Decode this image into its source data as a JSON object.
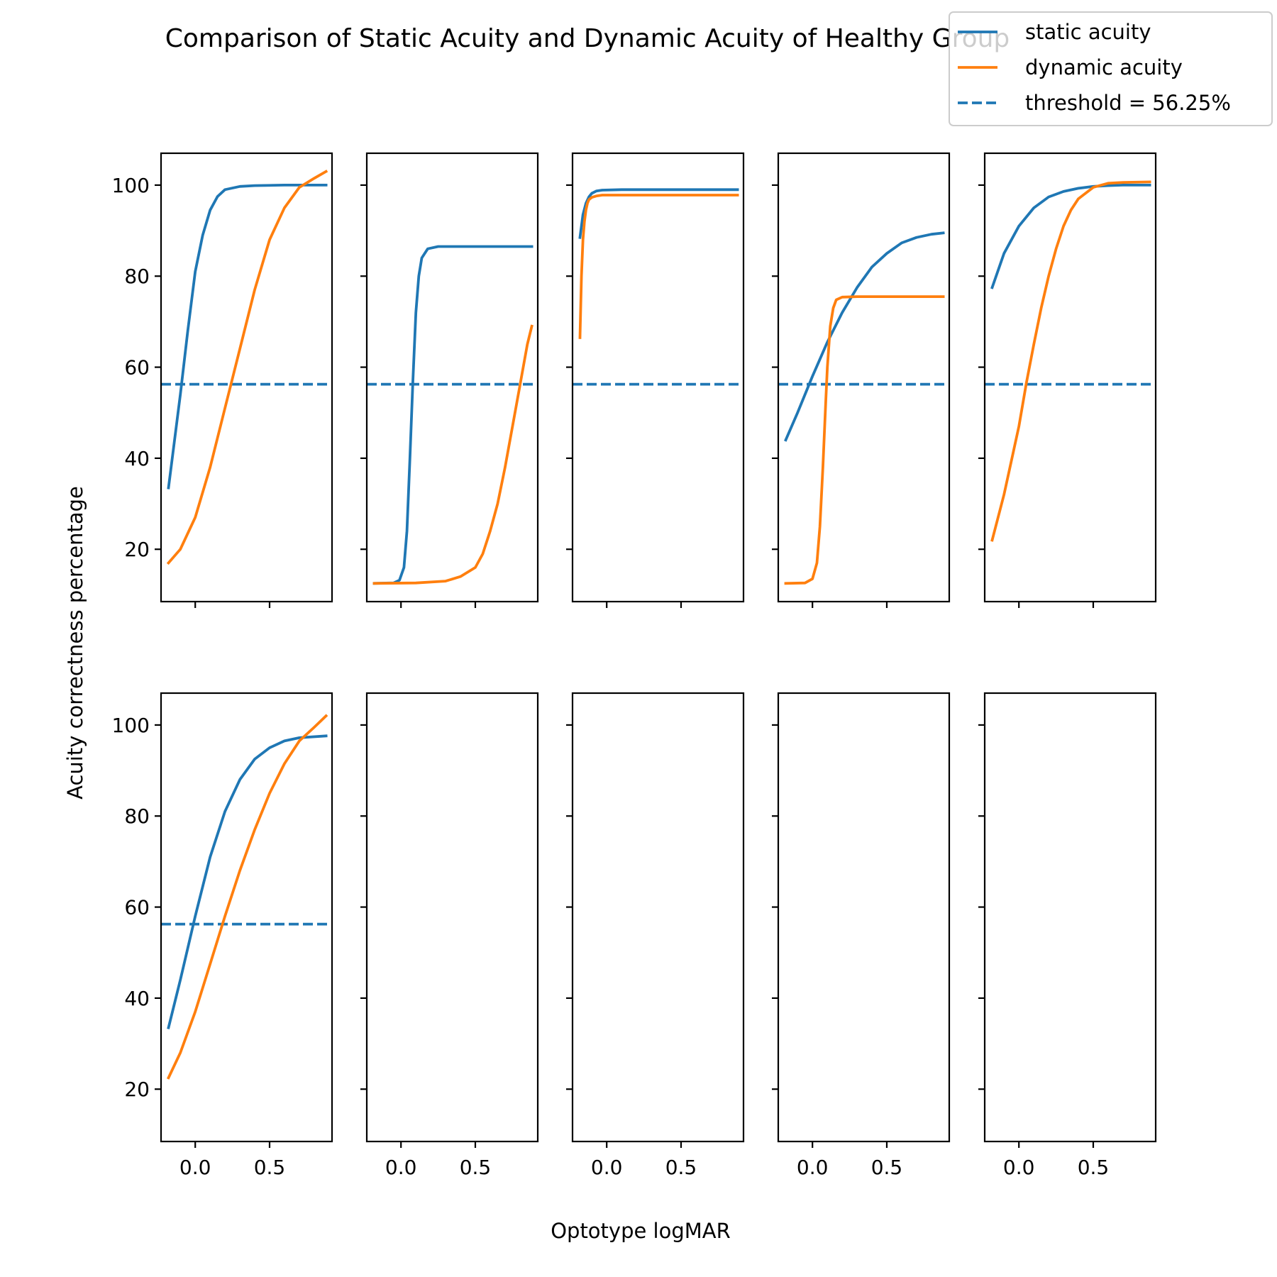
{
  "chart_data": {
    "type": "line",
    "title": "Comparison of Static Acuity and Dynamic Acuity of Healthy Group",
    "xlabel": "Optotype logMAR",
    "ylabel": "Acuity correctness percentage",
    "xlim": [
      -0.23,
      0.92
    ],
    "ylim": [
      8.5,
      107
    ],
    "xticks": [
      0.0,
      0.5
    ],
    "xtick_labels": [
      "0.0",
      "0.5"
    ],
    "yticks": [
      20,
      40,
      60,
      80,
      100
    ],
    "ytick_labels": [
      "20",
      "40",
      "60",
      "80",
      "100"
    ],
    "grid": false,
    "layout": {
      "rows": 2,
      "cols": 5
    },
    "legend": {
      "placement": "top-right",
      "entries": [
        {
          "label": "static acuity",
          "style": "solid",
          "color": "#1f77b4"
        },
        {
          "label": "dynamic acuity",
          "style": "solid",
          "color": "#ff7f0e"
        },
        {
          "label": "threshold = 56.25%",
          "style": "dashed",
          "color": "#1f77b4"
        }
      ]
    },
    "threshold": 56.25,
    "colors": {
      "static": "#1f77b4",
      "dynamic": "#ff7f0e",
      "threshold": "#1f77b4"
    },
    "subplots": [
      {
        "row": 0,
        "col": 0,
        "has_data": true,
        "static": {
          "x": [
            -0.18,
            -0.1,
            -0.05,
            0.0,
            0.05,
            0.1,
            0.15,
            0.2,
            0.3,
            0.4,
            0.6,
            0.88
          ],
          "y": [
            33.5,
            54,
            68,
            81,
            89,
            94.5,
            97.5,
            99,
            99.7,
            99.9,
            100,
            100
          ]
        },
        "dynamic": {
          "x": [
            -0.18,
            -0.1,
            0.0,
            0.1,
            0.2,
            0.3,
            0.4,
            0.5,
            0.6,
            0.7,
            0.8,
            0.88
          ],
          "y": [
            17,
            20,
            27,
            38,
            51,
            64,
            77,
            88,
            95,
            99.5,
            101.5,
            103
          ]
        }
      },
      {
        "row": 0,
        "col": 1,
        "has_data": true,
        "static": {
          "x": [
            -0.18,
            -0.05,
            -0.01,
            0.02,
            0.04,
            0.06,
            0.08,
            0.1,
            0.12,
            0.14,
            0.18,
            0.25,
            0.5,
            0.88
          ],
          "y": [
            12.5,
            12.6,
            13.2,
            16,
            24,
            40,
            57,
            72,
            80,
            84,
            86,
            86.5,
            86.5,
            86.5
          ]
        },
        "dynamic": {
          "x": [
            -0.18,
            0.1,
            0.3,
            0.4,
            0.5,
            0.55,
            0.6,
            0.65,
            0.7,
            0.75,
            0.8,
            0.85,
            0.88
          ],
          "y": [
            12.5,
            12.6,
            13,
            14,
            16,
            19,
            24,
            30,
            38,
            47,
            56,
            65,
            69
          ]
        }
      },
      {
        "row": 0,
        "col": 2,
        "has_data": true,
        "static": {
          "x": [
            -0.18,
            -0.16,
            -0.14,
            -0.12,
            -0.1,
            -0.07,
            -0.03,
            0.1,
            0.5,
            0.88
          ],
          "y": [
            88.5,
            93.5,
            96,
            97.4,
            98.2,
            98.7,
            98.9,
            99,
            99,
            99
          ]
        },
        "dynamic": {
          "x": [
            -0.18,
            -0.17,
            -0.16,
            -0.15,
            -0.14,
            -0.13,
            -0.12,
            -0.1,
            -0.07,
            -0.03,
            0.1,
            0.5,
            0.88
          ],
          "y": [
            66.5,
            80,
            88,
            92,
            94.5,
            96,
            96.8,
            97.3,
            97.6,
            97.8,
            97.8,
            97.8,
            97.8
          ]
        }
      },
      {
        "row": 0,
        "col": 3,
        "has_data": true,
        "static": {
          "x": [
            -0.18,
            -0.1,
            0.0,
            0.1,
            0.2,
            0.3,
            0.4,
            0.5,
            0.6,
            0.7,
            0.8,
            0.88
          ],
          "y": [
            44,
            50,
            58,
            65.5,
            72,
            77.5,
            82,
            85,
            87.3,
            88.5,
            89.2,
            89.5
          ]
        },
        "dynamic": {
          "x": [
            -0.18,
            -0.05,
            0.0,
            0.03,
            0.05,
            0.07,
            0.09,
            0.1,
            0.12,
            0.14,
            0.16,
            0.2,
            0.3,
            0.88
          ],
          "y": [
            12.5,
            12.6,
            13.5,
            17,
            25,
            38,
            53,
            60,
            69,
            73,
            74.8,
            75.4,
            75.5,
            75.5
          ]
        }
      },
      {
        "row": 0,
        "col": 4,
        "has_data": true,
        "static": {
          "x": [
            -0.18,
            -0.1,
            0.0,
            0.1,
            0.2,
            0.3,
            0.4,
            0.5,
            0.6,
            0.7,
            0.88
          ],
          "y": [
            77.5,
            85,
            91,
            95,
            97.4,
            98.6,
            99.3,
            99.7,
            99.9,
            100,
            100
          ]
        },
        "dynamic": {
          "x": [
            -0.18,
            -0.1,
            0.0,
            0.05,
            0.1,
            0.15,
            0.2,
            0.25,
            0.3,
            0.35,
            0.4,
            0.5,
            0.6,
            0.7,
            0.88
          ],
          "y": [
            22,
            32,
            47,
            56.5,
            65,
            73,
            80,
            86,
            91,
            94.5,
            97,
            99.5,
            100.4,
            100.6,
            100.7
          ]
        }
      },
      {
        "row": 1,
        "col": 0,
        "has_data": true,
        "static": {
          "x": [
            -0.18,
            -0.1,
            0.0,
            0.1,
            0.2,
            0.3,
            0.4,
            0.5,
            0.6,
            0.7,
            0.88
          ],
          "y": [
            33.5,
            44,
            58,
            71,
            81,
            88,
            92.5,
            95,
            96.5,
            97.2,
            97.6
          ]
        },
        "dynamic": {
          "x": [
            -0.18,
            -0.1,
            0.0,
            0.1,
            0.2,
            0.3,
            0.4,
            0.5,
            0.6,
            0.7,
            0.8,
            0.88
          ],
          "y": [
            22.5,
            28,
            37,
            47.5,
            58,
            68,
            77,
            85,
            91.5,
            96.5,
            99.5,
            102
          ]
        }
      },
      {
        "row": 1,
        "col": 1,
        "has_data": false
      },
      {
        "row": 1,
        "col": 2,
        "has_data": false
      },
      {
        "row": 1,
        "col": 3,
        "has_data": false
      },
      {
        "row": 1,
        "col": 4,
        "has_data": false
      }
    ]
  }
}
